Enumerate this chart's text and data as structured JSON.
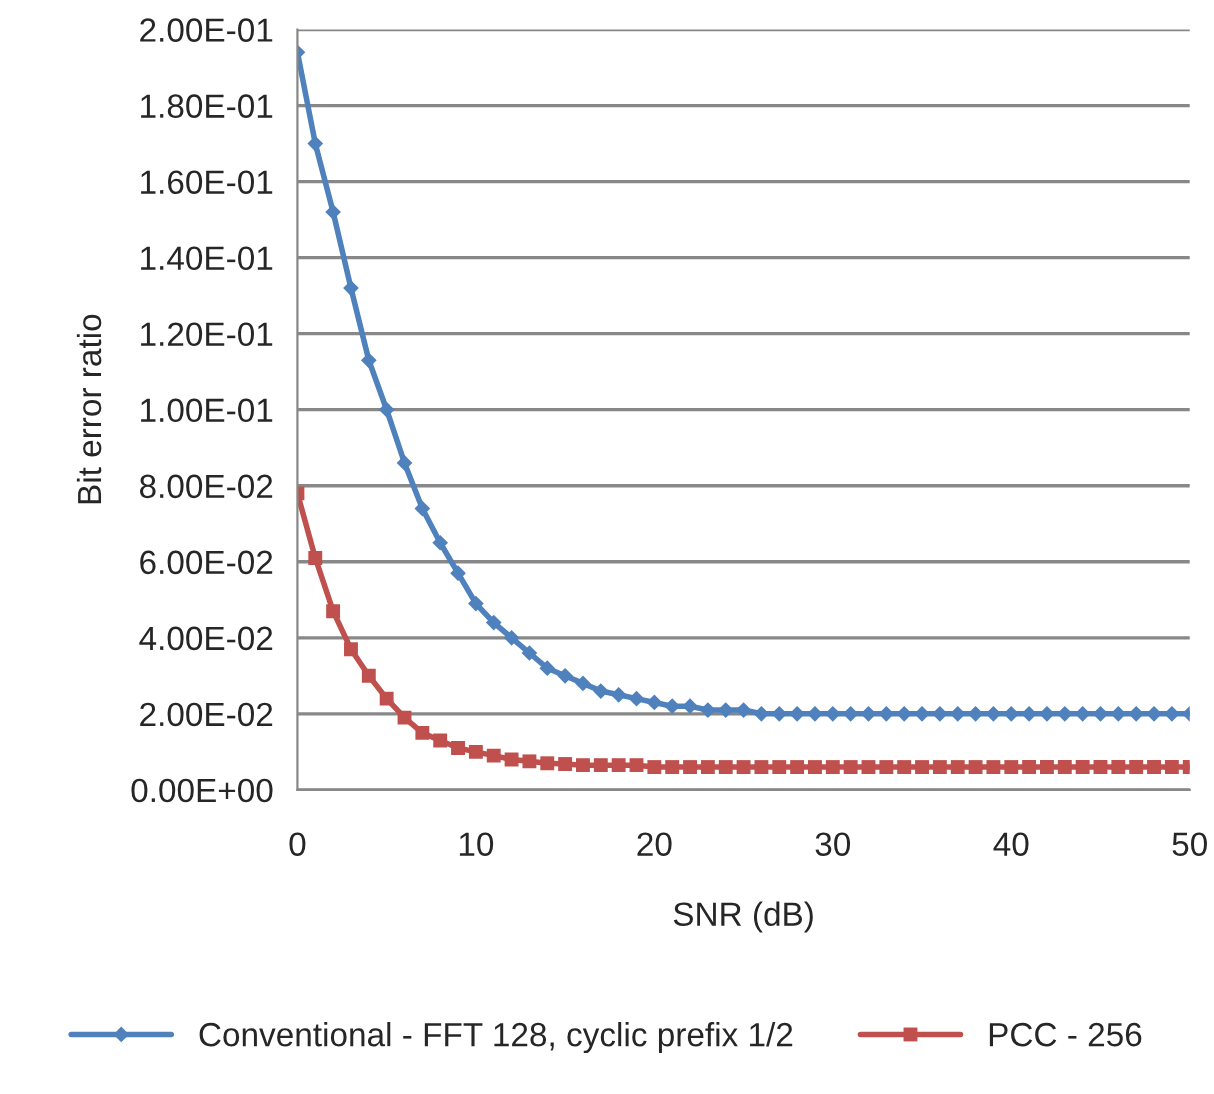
{
  "chart_data": {
    "type": "line",
    "xlabel": "SNR (dB)",
    "ylabel": "Bit error ratio",
    "x": [
      0,
      1,
      2,
      3,
      4,
      5,
      6,
      7,
      8,
      9,
      10,
      11,
      12,
      13,
      14,
      15,
      16,
      17,
      18,
      19,
      20,
      21,
      22,
      23,
      24,
      25,
      26,
      27,
      28,
      29,
      30,
      31,
      32,
      33,
      34,
      35,
      36,
      37,
      38,
      39,
      40,
      41,
      42,
      43,
      44,
      45,
      46,
      47,
      48,
      49,
      50
    ],
    "series": [
      {
        "name": "Conventional - FFT 128, cyclic prefix 1/2",
        "color": "#4f81bd",
        "marker": "diamond",
        "values": [
          0.194,
          0.17,
          0.152,
          0.132,
          0.113,
          0.1,
          0.086,
          0.074,
          0.065,
          0.057,
          0.049,
          0.044,
          0.04,
          0.036,
          0.032,
          0.03,
          0.028,
          0.026,
          0.025,
          0.024,
          0.023,
          0.022,
          0.022,
          0.021,
          0.021,
          0.021,
          0.02,
          0.02,
          0.02,
          0.02,
          0.02,
          0.02,
          0.02,
          0.02,
          0.02,
          0.02,
          0.02,
          0.02,
          0.02,
          0.02,
          0.02,
          0.02,
          0.02,
          0.02,
          0.02,
          0.02,
          0.02,
          0.02,
          0.02,
          0.02,
          0.02
        ]
      },
      {
        "name": "PCC - 256",
        "color": "#c0504d",
        "marker": "square",
        "values": [
          0.078,
          0.061,
          0.047,
          0.037,
          0.03,
          0.024,
          0.019,
          0.015,
          0.013,
          0.011,
          0.01,
          0.009,
          0.008,
          0.0075,
          0.007,
          0.0068,
          0.0065,
          0.0065,
          0.0065,
          0.0065,
          0.006,
          0.006,
          0.006,
          0.006,
          0.006,
          0.006,
          0.006,
          0.006,
          0.006,
          0.006,
          0.006,
          0.006,
          0.006,
          0.006,
          0.006,
          0.006,
          0.006,
          0.006,
          0.006,
          0.006,
          0.006,
          0.006,
          0.006,
          0.006,
          0.006,
          0.006,
          0.006,
          0.006,
          0.006,
          0.006,
          0.006
        ]
      }
    ],
    "xlim": [
      0,
      50
    ],
    "xticks": [
      0,
      10,
      20,
      30,
      40,
      50
    ],
    "ylim": [
      0,
      0.2
    ],
    "yticks": [
      {
        "value": 0,
        "label": "0.00E+00"
      },
      {
        "value": 0.02,
        "label": "2.00E-02"
      },
      {
        "value": 0.04,
        "label": "4.00E-02"
      },
      {
        "value": 0.06,
        "label": "6.00E-02"
      },
      {
        "value": 0.08,
        "label": "8.00E-02"
      },
      {
        "value": 0.1,
        "label": "1.00E-01"
      },
      {
        "value": 0.12,
        "label": "1.20E-01"
      },
      {
        "value": 0.14,
        "label": "1.40E-01"
      },
      {
        "value": 0.16,
        "label": "1.60E-01"
      },
      {
        "value": 0.18,
        "label": "1.80E-01"
      },
      {
        "value": 0.2,
        "label": "2.00E-01"
      }
    ],
    "grid": "y",
    "legend": "bottom",
    "line_style": "solid"
  }
}
